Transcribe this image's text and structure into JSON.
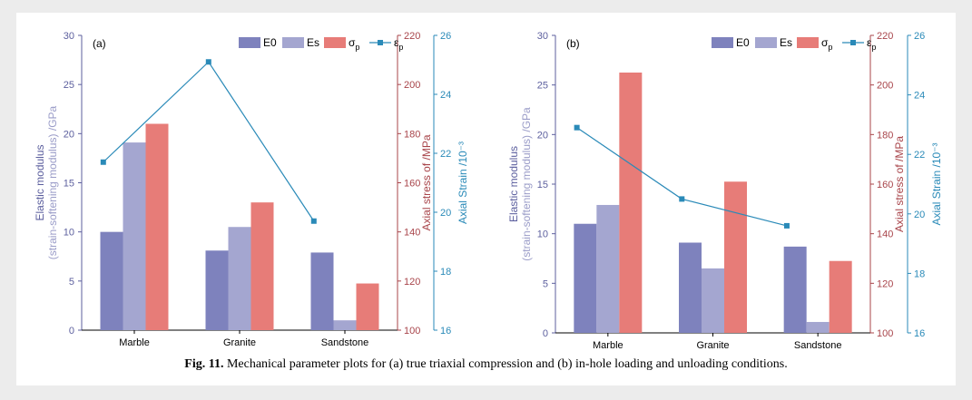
{
  "caption": {
    "label": "Fig. 11.",
    "text": "Mechanical parameter plots for (a) true triaxial compression and (b) in-hole loading and unloading conditions."
  },
  "colors": {
    "E0": "#7e82bd",
    "Es": "#a4a6d0",
    "sigma": "#e77c78",
    "eps": "#2a8ab8",
    "left_axis": "#5c5f9e",
    "mid_axis": "#a8444a",
    "right_axis": "#2a8ab8"
  },
  "chart_data": [
    {
      "type": "bar",
      "panel_label": "(a)",
      "categories": [
        "Marble",
        "Granite",
        "Sandstone"
      ],
      "series": [
        {
          "name": "E0",
          "axis": "left",
          "values": [
            10,
            8.1,
            7.9
          ]
        },
        {
          "name": "Es",
          "axis": "left",
          "values": [
            19.1,
            10.5,
            1.0
          ]
        },
        {
          "name": "σp",
          "axis": "mid",
          "kind": "bar",
          "values": [
            184,
            152,
            119
          ]
        },
        {
          "name": "εp",
          "axis": "right",
          "kind": "line",
          "values": [
            21.7,
            25.1,
            19.7
          ]
        }
      ],
      "axes": {
        "left": {
          "label_line1": "Elastic modulus",
          "label_line2": "(strain-softening modulus) /GPa",
          "ylim": [
            0,
            30
          ],
          "ticks": [
            "0",
            "5",
            "10",
            "15",
            "20",
            "25",
            "30"
          ]
        },
        "mid": {
          "label": "Axial stress of /MPa",
          "ylim": [
            100,
            220
          ],
          "ticks": [
            "100",
            "120",
            "140",
            "160",
            "180",
            "200",
            "220"
          ]
        },
        "right": {
          "label": "Axial Strain /10⁻³",
          "ylim": [
            16,
            26
          ],
          "ticks": [
            "16",
            "18",
            "20",
            "22",
            "24",
            "26"
          ]
        }
      },
      "legend": {
        "placement": "top-right",
        "entries": [
          "E0",
          "Es",
          "σp",
          "εp"
        ]
      }
    },
    {
      "type": "bar",
      "panel_label": "(b)",
      "categories": [
        "Marble",
        "Granite",
        "Sandstone"
      ],
      "series": [
        {
          "name": "E0",
          "axis": "left",
          "values": [
            11.0,
            9.1,
            8.7
          ]
        },
        {
          "name": "Es",
          "axis": "left",
          "values": [
            12.9,
            6.5,
            1.1
          ]
        },
        {
          "name": "σp",
          "axis": "mid",
          "kind": "bar",
          "values": [
            205,
            161,
            129
          ]
        },
        {
          "name": "εp",
          "axis": "right",
          "kind": "line",
          "values": [
            22.9,
            20.5,
            19.6
          ]
        }
      ],
      "axes": {
        "left": {
          "label_line1": "Elastic modulus",
          "label_line2": "(strain-softening modulus) /GPa",
          "ylim": [
            0,
            30
          ],
          "ticks": [
            "0",
            "5",
            "10",
            "15",
            "20",
            "25",
            "30"
          ]
        },
        "mid": {
          "label": "Axial stress of /MPa",
          "ylim": [
            100,
            220
          ],
          "ticks": [
            "100",
            "120",
            "140",
            "160",
            "180",
            "200",
            "220"
          ]
        },
        "right": {
          "label": "Axial Strain /10⁻³",
          "ylim": [
            16,
            26
          ],
          "ticks": [
            "16",
            "18",
            "20",
            "22",
            "24",
            "26"
          ]
        }
      },
      "legend": {
        "placement": "top-right",
        "entries": [
          "E0",
          "Es",
          "σp",
          "εp"
        ]
      }
    }
  ]
}
